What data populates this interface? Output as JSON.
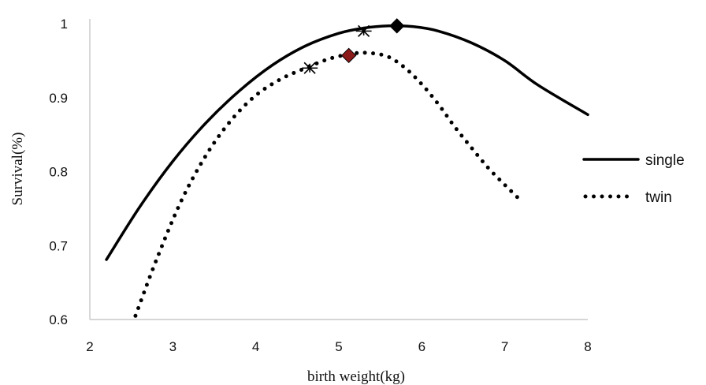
{
  "chart_data": {
    "type": "line",
    "title": "",
    "xlabel": "birth weight(kg)",
    "ylabel": "Survival(%)",
    "xlim": [
      2,
      8
    ],
    "ylim": [
      0.6,
      1.0
    ],
    "x_ticks": [
      2,
      3,
      4,
      5,
      6,
      7,
      8
    ],
    "y_ticks": [
      0.6,
      0.7,
      0.8,
      0.9,
      1
    ],
    "grid": false,
    "legend_position": "right",
    "series": [
      {
        "name": "single",
        "style": "solid",
        "color": "#000000",
        "points": [
          [
            2.2,
            0.681
          ],
          [
            2.6,
            0.752
          ],
          [
            3.0,
            0.814
          ],
          [
            3.4,
            0.866
          ],
          [
            3.8,
            0.909
          ],
          [
            4.2,
            0.944
          ],
          [
            4.6,
            0.97
          ],
          [
            5.0,
            0.987
          ],
          [
            5.3,
            0.994
          ],
          [
            5.6,
            0.997
          ],
          [
            5.9,
            0.996
          ],
          [
            6.2,
            0.99
          ],
          [
            6.6,
            0.974
          ],
          [
            7.0,
            0.95
          ],
          [
            7.4,
            0.917
          ],
          [
            8.0,
            0.877
          ]
        ],
        "markers": [
          {
            "shape": "asterisk",
            "x": 5.3,
            "y": 0.99
          },
          {
            "shape": "diamond",
            "x": 5.7,
            "y": 0.997,
            "color": "#000000"
          }
        ]
      },
      {
        "name": "twin",
        "style": "dotted",
        "color": "#000000",
        "points": [
          [
            2.55,
            0.605
          ],
          [
            2.8,
            0.68
          ],
          [
            3.1,
            0.76
          ],
          [
            3.4,
            0.822
          ],
          [
            3.7,
            0.869
          ],
          [
            4.0,
            0.903
          ],
          [
            4.3,
            0.925
          ],
          [
            4.6,
            0.94
          ],
          [
            4.9,
            0.953
          ],
          [
            5.2,
            0.96
          ],
          [
            5.4,
            0.96
          ],
          [
            5.6,
            0.955
          ],
          [
            5.8,
            0.94
          ],
          [
            6.0,
            0.918
          ],
          [
            6.2,
            0.891
          ],
          [
            6.4,
            0.86
          ],
          [
            6.6,
            0.832
          ],
          [
            6.8,
            0.805
          ],
          [
            7.0,
            0.782
          ],
          [
            7.2,
            0.76
          ]
        ],
        "markers": [
          {
            "shape": "asterisk",
            "x": 4.65,
            "y": 0.94
          },
          {
            "shape": "diamond",
            "x": 5.12,
            "y": 0.957,
            "color": "#8b1a1a"
          }
        ]
      }
    ]
  }
}
